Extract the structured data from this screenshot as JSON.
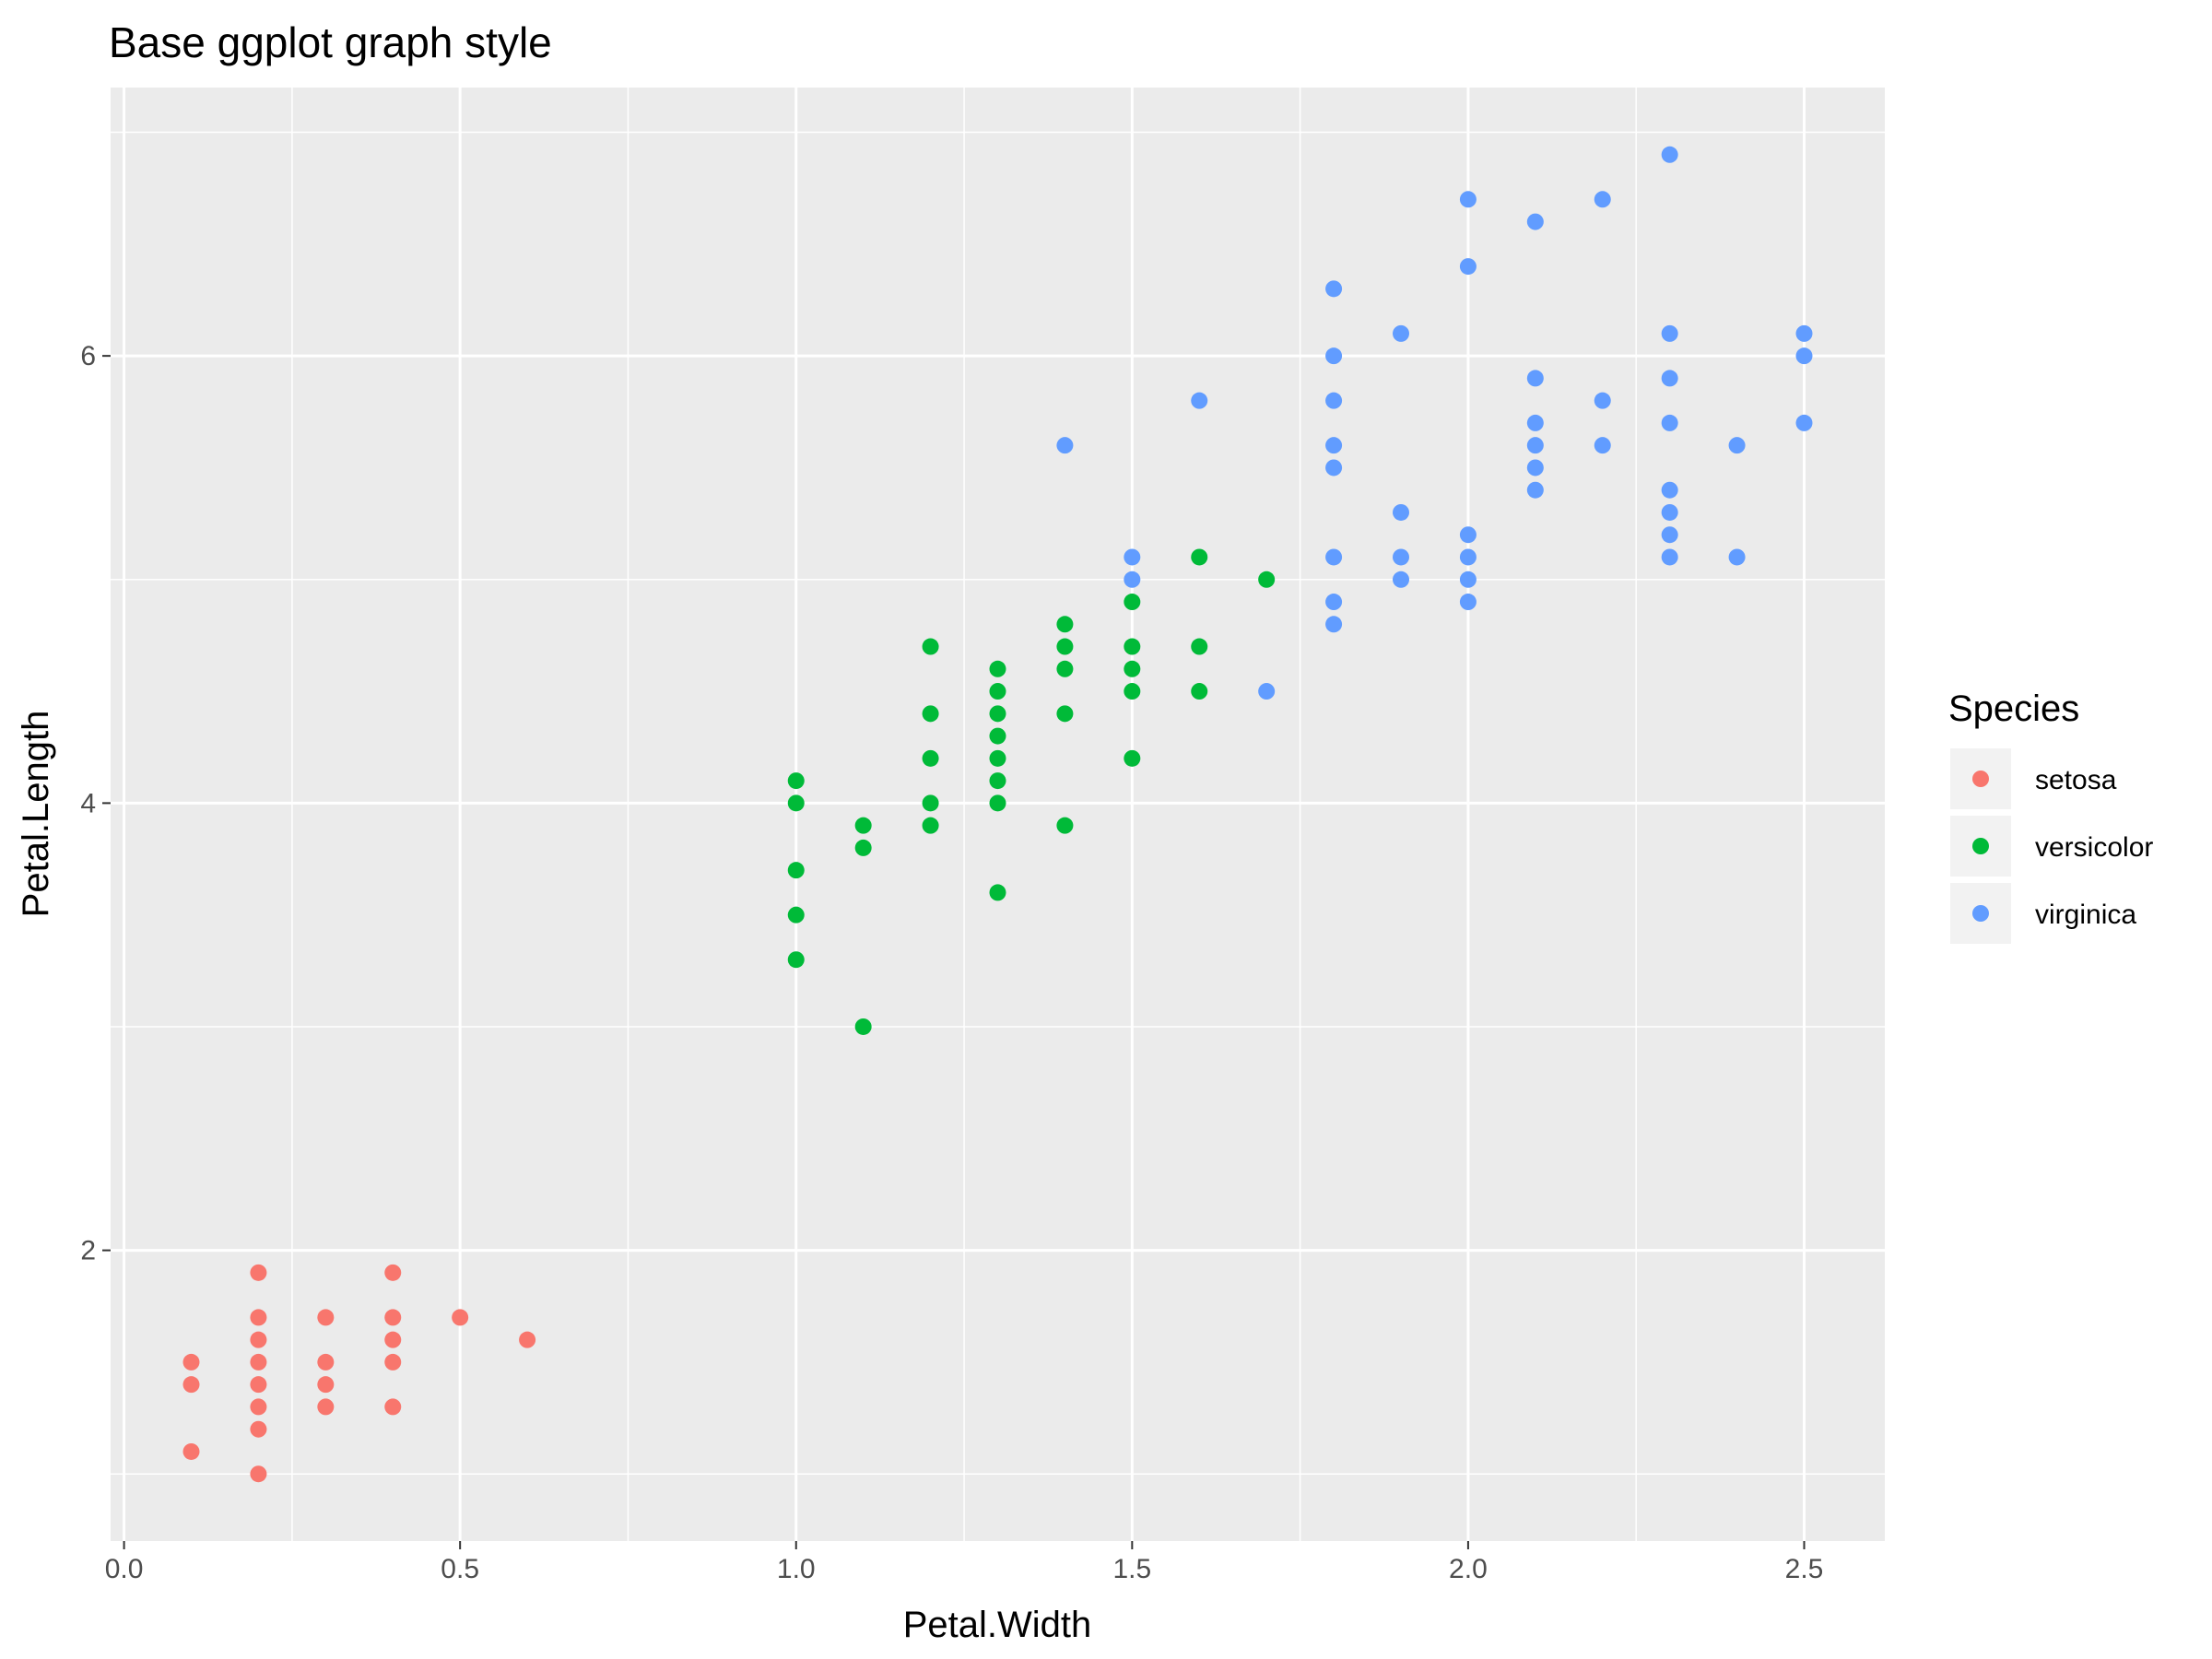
{
  "chart_data": {
    "type": "scatter",
    "title": "Base ggplot graph style",
    "xlabel": "Petal.Width",
    "ylabel": "Petal.Length",
    "xlim": [
      -0.02,
      2.62
    ],
    "ylim": [
      0.7,
      7.2
    ],
    "x_ticks": [
      0.0,
      0.5,
      1.0,
      1.5,
      2.0,
      2.5
    ],
    "x_tick_labels": [
      "0.0",
      "0.5",
      "1.0",
      "1.5",
      "2.0",
      "2.5"
    ],
    "y_ticks": [
      2,
      4,
      6
    ],
    "y_tick_labels": [
      "2",
      "4",
      "6"
    ],
    "x_minor_gridlines": [
      0.25,
      0.75,
      1.25,
      1.75,
      2.25
    ],
    "y_minor_gridlines": [
      1,
      3,
      5,
      7
    ],
    "grid": true,
    "panel_background": "#ebebeb",
    "gridline_color": "#ffffff",
    "legend": {
      "title": "Species",
      "position": "right"
    },
    "series": [
      {
        "name": "setosa",
        "color": "#f8766d",
        "points": [
          [
            0.1,
            1.5
          ],
          [
            0.1,
            1.4
          ],
          [
            0.1,
            1.1
          ],
          [
            0.2,
            1.9
          ],
          [
            0.2,
            1.7
          ],
          [
            0.2,
            1.6
          ],
          [
            0.2,
            1.5
          ],
          [
            0.2,
            1.4
          ],
          [
            0.2,
            1.3
          ],
          [
            0.2,
            1.2
          ],
          [
            0.2,
            1.0
          ],
          [
            0.3,
            1.7
          ],
          [
            0.3,
            1.5
          ],
          [
            0.3,
            1.4
          ],
          [
            0.3,
            1.3
          ],
          [
            0.4,
            1.9
          ],
          [
            0.4,
            1.7
          ],
          [
            0.4,
            1.6
          ],
          [
            0.4,
            1.5
          ],
          [
            0.4,
            1.3
          ],
          [
            0.5,
            1.7
          ],
          [
            0.6,
            1.6
          ]
        ]
      },
      {
        "name": "versicolor",
        "color": "#00ba38",
        "points": [
          [
            1.0,
            4.1
          ],
          [
            1.0,
            4.0
          ],
          [
            1.0,
            3.7
          ],
          [
            1.0,
            3.5
          ],
          [
            1.0,
            3.3
          ],
          [
            1.1,
            3.9
          ],
          [
            1.1,
            3.8
          ],
          [
            1.1,
            3.0
          ],
          [
            1.2,
            4.7
          ],
          [
            1.2,
            4.4
          ],
          [
            1.2,
            4.2
          ],
          [
            1.2,
            4.0
          ],
          [
            1.2,
            3.9
          ],
          [
            1.3,
            4.6
          ],
          [
            1.3,
            4.5
          ],
          [
            1.3,
            4.4
          ],
          [
            1.3,
            4.3
          ],
          [
            1.3,
            4.2
          ],
          [
            1.3,
            4.1
          ],
          [
            1.3,
            4.0
          ],
          [
            1.3,
            3.6
          ],
          [
            1.4,
            4.8
          ],
          [
            1.4,
            4.7
          ],
          [
            1.4,
            4.6
          ],
          [
            1.4,
            4.4
          ],
          [
            1.4,
            3.9
          ],
          [
            1.5,
            4.9
          ],
          [
            1.5,
            4.7
          ],
          [
            1.5,
            4.6
          ],
          [
            1.5,
            4.5
          ],
          [
            1.5,
            4.2
          ],
          [
            1.6,
            5.1
          ],
          [
            1.6,
            4.7
          ],
          [
            1.6,
            4.5
          ],
          [
            1.7,
            5.0
          ]
        ]
      },
      {
        "name": "virginica",
        "color": "#619cff",
        "points": [
          [
            1.4,
            5.6
          ],
          [
            1.5,
            5.1
          ],
          [
            1.5,
            5.0
          ],
          [
            1.6,
            5.8
          ],
          [
            1.7,
            4.5
          ],
          [
            1.8,
            6.3
          ],
          [
            1.8,
            6.0
          ],
          [
            1.8,
            5.8
          ],
          [
            1.8,
            5.6
          ],
          [
            1.8,
            5.5
          ],
          [
            1.8,
            5.1
          ],
          [
            1.8,
            4.9
          ],
          [
            1.8,
            4.8
          ],
          [
            1.9,
            6.1
          ],
          [
            1.9,
            5.3
          ],
          [
            1.9,
            5.1
          ],
          [
            1.9,
            5.0
          ],
          [
            2.0,
            6.7
          ],
          [
            2.0,
            6.4
          ],
          [
            2.0,
            5.2
          ],
          [
            2.0,
            5.1
          ],
          [
            2.0,
            5.0
          ],
          [
            2.0,
            4.9
          ],
          [
            2.1,
            6.6
          ],
          [
            2.1,
            5.9
          ],
          [
            2.1,
            5.7
          ],
          [
            2.1,
            5.6
          ],
          [
            2.1,
            5.5
          ],
          [
            2.1,
            5.4
          ],
          [
            2.2,
            6.7
          ],
          [
            2.2,
            5.8
          ],
          [
            2.2,
            5.6
          ],
          [
            2.3,
            6.9
          ],
          [
            2.3,
            6.1
          ],
          [
            2.3,
            5.9
          ],
          [
            2.3,
            5.7
          ],
          [
            2.3,
            5.4
          ],
          [
            2.3,
            5.3
          ],
          [
            2.3,
            5.2
          ],
          [
            2.3,
            5.1
          ],
          [
            2.4,
            5.6
          ],
          [
            2.4,
            5.1
          ],
          [
            2.5,
            6.1
          ],
          [
            2.5,
            6.0
          ],
          [
            2.5,
            5.7
          ]
        ]
      }
    ]
  }
}
